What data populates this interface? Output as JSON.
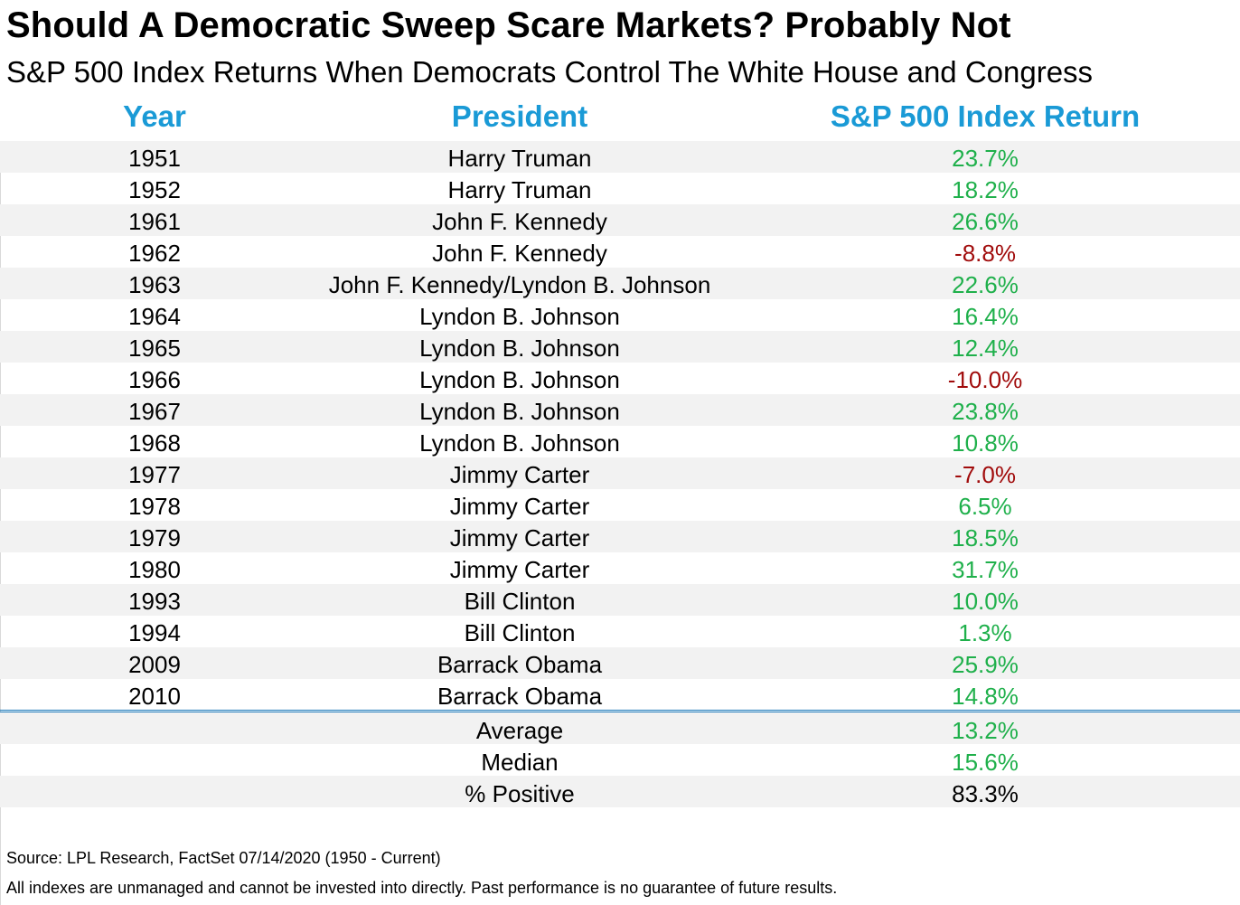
{
  "title": "Should A Democratic Sweep Scare Markets? Probably Not",
  "subtitle": "S&P 500 Index Returns When Democrats Control The White House and Congress",
  "columns": {
    "year": "Year",
    "president": "President",
    "return": "S&P 500 Index Return"
  },
  "colors": {
    "header": "#1a9ad6",
    "positive": "#1fb04b",
    "negative": "#a10c0c",
    "band": "#f2f2f2"
  },
  "chart_data": {
    "type": "table",
    "columns": [
      "Year",
      "President",
      "S&P 500 Index Return"
    ],
    "rows": [
      {
        "year": "1951",
        "president": "Harry Truman",
        "return": "23.7%",
        "value": 23.7
      },
      {
        "year": "1952",
        "president": "Harry Truman",
        "return": "18.2%",
        "value": 18.2
      },
      {
        "year": "1961",
        "president": "John F. Kennedy",
        "return": "26.6%",
        "value": 26.6
      },
      {
        "year": "1962",
        "president": "John F. Kennedy",
        "return": "-8.8%",
        "value": -8.8
      },
      {
        "year": "1963",
        "president": "John F. Kennedy/Lyndon B. Johnson",
        "return": "22.6%",
        "value": 22.6
      },
      {
        "year": "1964",
        "president": "Lyndon B. Johnson",
        "return": "16.4%",
        "value": 16.4
      },
      {
        "year": "1965",
        "president": "Lyndon B. Johnson",
        "return": "12.4%",
        "value": 12.4
      },
      {
        "year": "1966",
        "president": "Lyndon B. Johnson",
        "return": "-10.0%",
        "value": -10.0
      },
      {
        "year": "1967",
        "president": "Lyndon B. Johnson",
        "return": "23.8%",
        "value": 23.8
      },
      {
        "year": "1968",
        "president": "Lyndon B. Johnson",
        "return": "10.8%",
        "value": 10.8
      },
      {
        "year": "1977",
        "president": "Jimmy Carter",
        "return": "-7.0%",
        "value": -7.0
      },
      {
        "year": "1978",
        "president": "Jimmy Carter",
        "return": "6.5%",
        "value": 6.5
      },
      {
        "year": "1979",
        "president": "Jimmy Carter",
        "return": "18.5%",
        "value": 18.5
      },
      {
        "year": "1980",
        "president": "Jimmy Carter",
        "return": "31.7%",
        "value": 31.7
      },
      {
        "year": "1993",
        "president": "Bill Clinton",
        "return": "10.0%",
        "value": 10.0
      },
      {
        "year": "1994",
        "president": "Bill Clinton",
        "return": "1.3%",
        "value": 1.3
      },
      {
        "year": "2009",
        "president": "Barrack Obama",
        "return": "25.9%",
        "value": 25.9
      },
      {
        "year": "2010",
        "president": "Barrack Obama",
        "return": "14.8%",
        "value": 14.8
      }
    ],
    "summary": [
      {
        "label": "Average",
        "return": "13.2%",
        "tone": "pos"
      },
      {
        "label": "Median",
        "return": "15.6%",
        "tone": "pos"
      },
      {
        "label": "% Positive",
        "return": "83.3%",
        "tone": "neutral"
      }
    ]
  },
  "footer": {
    "source": "Source: LPL Research, FactSet 07/14/2020 (1950 - Current)",
    "disclaimer": "All indexes are unmanaged and cannot be invested into directly. Past performance is no guarantee of future results."
  }
}
